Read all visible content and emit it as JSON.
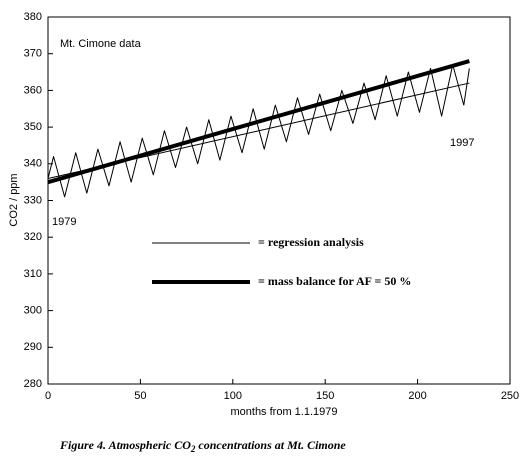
{
  "chart_data": {
    "type": "line",
    "x_label": "months from 1.1.1979",
    "y_label": "CO2 / ppm",
    "annotations": [
      "Mt. Cimone data",
      "1979",
      "1997"
    ],
    "caption": [
      "Figure 4. Atmospheric CO",
      "2",
      " concentrations at Mt. Cimone"
    ],
    "xlim": [
      0,
      250
    ],
    "xticks": [
      0,
      50,
      100,
      150,
      200,
      250
    ],
    "ylim": [
      280,
      380
    ],
    "yticks": [
      280,
      290,
      300,
      310,
      320,
      330,
      340,
      350,
      360,
      370,
      380
    ],
    "series": [
      {
        "color": "#000000",
        "line_width": 1,
        "x": [
          0,
          3,
          9,
          15,
          21,
          27,
          33,
          39,
          45,
          51,
          57,
          63,
          69,
          75,
          81,
          87,
          93,
          99,
          105,
          111,
          117,
          123,
          129,
          135,
          141,
          147,
          153,
          159,
          165,
          171,
          177,
          183,
          189,
          195,
          201,
          207,
          213,
          219,
          225,
          228
        ],
        "values": [
          336,
          342,
          331,
          343,
          332,
          344,
          334,
          346,
          335,
          347,
          337,
          349,
          339,
          350,
          340,
          352,
          341,
          353,
          343,
          355,
          344,
          356,
          346,
          358,
          348,
          359,
          349,
          360,
          351,
          362,
          352,
          364,
          353,
          365,
          354,
          366,
          353,
          367,
          356,
          366
        ]
      },
      {
        "name": "= regression analysis",
        "color": "#000000",
        "line_width": 1,
        "x": [
          0,
          228
        ],
        "values": [
          336,
          362
        ]
      },
      {
        "name": "= mass balance for AF = 50 %",
        "color": "#000000",
        "line_width": 4,
        "x": [
          0,
          228
        ],
        "values": [
          335,
          368
        ]
      }
    ]
  }
}
